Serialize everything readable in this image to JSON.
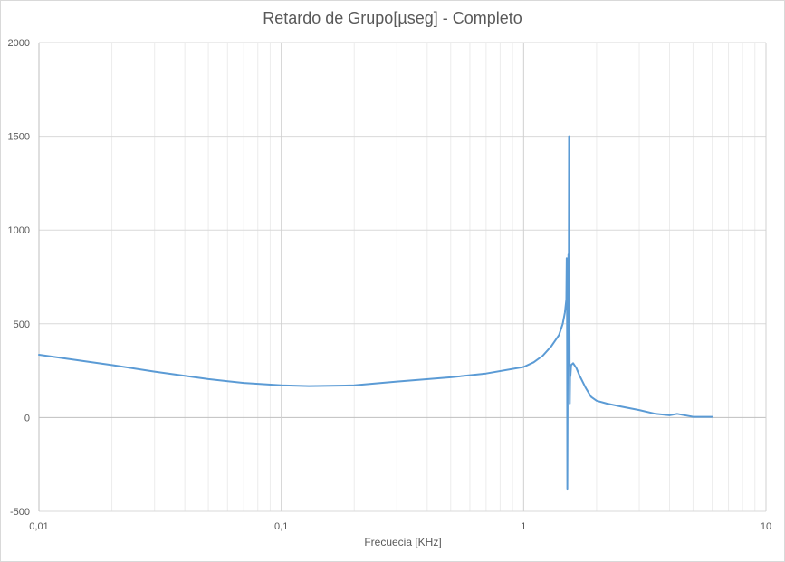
{
  "chart_data": {
    "type": "line",
    "title": "Retardo de Grupo[µseg] - Completo",
    "xlabel": "Frecuecia [KHz]",
    "ylabel": "",
    "x_scale": "log",
    "xlim": [
      0.01,
      10
    ],
    "ylim": [
      -500,
      2000
    ],
    "x_ticks": [
      0.01,
      0.1,
      1,
      10
    ],
    "x_tick_labels": [
      "0,01",
      "0,1",
      "1",
      "10"
    ],
    "y_ticks": [
      -500,
      0,
      500,
      1000,
      1500,
      2000
    ],
    "y_tick_labels": [
      "-500",
      "0",
      "500",
      "1000",
      "1500",
      "2000"
    ],
    "grid": true,
    "legend": "none",
    "series": [
      {
        "color": "#5b9bd5",
        "x": [
          0.01,
          0.02,
          0.03,
          0.05,
          0.07,
          0.1,
          0.13,
          0.2,
          0.3,
          0.5,
          0.7,
          1.0,
          1.1,
          1.2,
          1.3,
          1.4,
          1.45,
          1.48,
          1.5,
          1.505,
          1.51,
          1.515,
          1.52,
          1.53,
          1.535,
          1.54,
          1.545,
          1.55,
          1.555,
          1.56,
          1.57,
          1.6,
          1.65,
          1.7,
          1.8,
          1.9,
          2.0,
          2.2,
          2.5,
          3.0,
          3.5,
          4.0,
          4.3,
          4.5,
          4.8,
          5.0,
          5.5,
          6.0
        ],
        "y": [
          335,
          280,
          245,
          205,
          185,
          172,
          168,
          172,
          192,
          215,
          235,
          270,
          295,
          330,
          380,
          440,
          500,
          560,
          630,
          850,
          760,
          -380,
          200,
          870,
          280,
          1500,
          600,
          75,
          250,
          220,
          280,
          290,
          265,
          225,
          160,
          110,
          90,
          75,
          60,
          40,
          20,
          12,
          20,
          15,
          8,
          4,
          4,
          4
        ]
      }
    ]
  }
}
